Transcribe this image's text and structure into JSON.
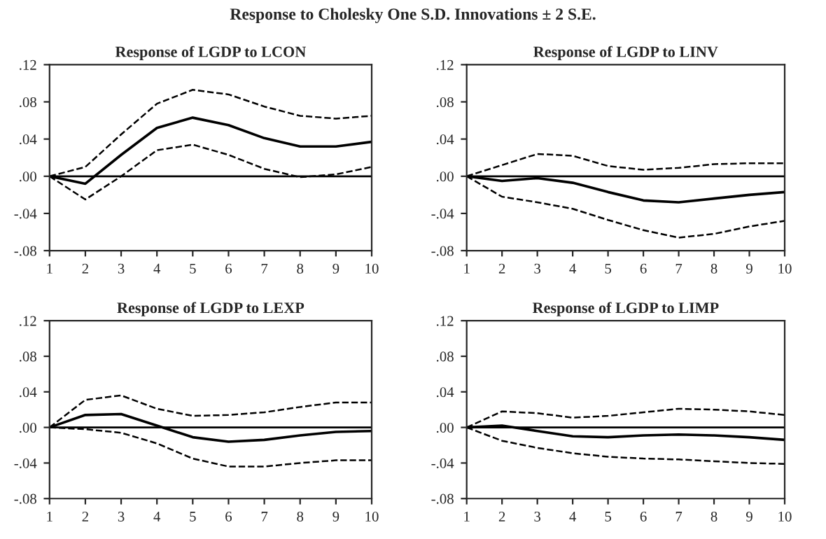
{
  "chart_data": [
    {
      "type": "line",
      "title": "Response of LGDP to LCON",
      "annotations": [
        "Response to Cholesky One S.D. Innovations ± 2 S.E."
      ],
      "x": [
        1,
        2,
        3,
        4,
        5,
        6,
        7,
        8,
        9,
        10
      ],
      "xlim": [
        1,
        10
      ],
      "xticks": [
        1,
        2,
        3,
        4,
        5,
        6,
        7,
        8,
        9,
        10
      ],
      "ylim": [
        -0.08,
        0.12
      ],
      "yticks": [
        {
          "value": -0.08,
          "label": "-.08"
        },
        {
          "value": -0.04,
          "label": "-.04"
        },
        {
          "value": 0.0,
          "label": ".00"
        },
        {
          "value": 0.04,
          "label": ".04"
        },
        {
          "value": 0.08,
          "label": ".08"
        },
        {
          "value": 0.12,
          "label": ".12"
        }
      ],
      "grid": false,
      "ref_lines": [
        {
          "axis": "y",
          "value": 0,
          "color": "#000000",
          "line_style": "solid"
        }
      ],
      "series": [
        {
          "color": "#000000",
          "line_style": "solid",
          "values": [
            0,
            -0.008,
            0.023,
            0.052,
            0.063,
            0.055,
            0.041,
            0.032,
            0.032,
            0.037
          ]
        },
        {
          "color": "#000000",
          "line_style": "dashed",
          "values": [
            0,
            0.01,
            0.045,
            0.078,
            0.093,
            0.088,
            0.075,
            0.065,
            0.062,
            0.065
          ]
        },
        {
          "color": "#000000",
          "line_style": "dashed",
          "values": [
            0,
            -0.025,
            0.0,
            0.028,
            0.034,
            0.023,
            0.008,
            -0.001,
            0.002,
            0.01
          ]
        }
      ]
    },
    {
      "type": "line",
      "title": "Response of LGDP to LINV",
      "x": [
        1,
        2,
        3,
        4,
        5,
        6,
        7,
        8,
        9,
        10
      ],
      "xlim": [
        1,
        10
      ],
      "xticks": [
        1,
        2,
        3,
        4,
        5,
        6,
        7,
        8,
        9,
        10
      ],
      "ylim": [
        -0.08,
        0.12
      ],
      "yticks": [
        {
          "value": -0.08,
          "label": "-.08"
        },
        {
          "value": -0.04,
          "label": "-.04"
        },
        {
          "value": 0.0,
          "label": ".00"
        },
        {
          "value": 0.04,
          "label": ".04"
        },
        {
          "value": 0.08,
          "label": ".08"
        },
        {
          "value": 0.12,
          "label": ".12"
        }
      ],
      "grid": false,
      "ref_lines": [
        {
          "axis": "y",
          "value": 0,
          "color": "#000000",
          "line_style": "solid"
        }
      ],
      "series": [
        {
          "color": "#000000",
          "line_style": "solid",
          "values": [
            0,
            -0.005,
            -0.002,
            -0.007,
            -0.017,
            -0.026,
            -0.028,
            -0.024,
            -0.02,
            -0.017
          ]
        },
        {
          "color": "#000000",
          "line_style": "dashed",
          "values": [
            0,
            0.012,
            0.024,
            0.022,
            0.011,
            0.007,
            0.009,
            0.013,
            0.014,
            0.014
          ]
        },
        {
          "color": "#000000",
          "line_style": "dashed",
          "values": [
            0,
            -0.022,
            -0.028,
            -0.035,
            -0.047,
            -0.058,
            -0.066,
            -0.062,
            -0.054,
            -0.048
          ]
        }
      ]
    },
    {
      "type": "line",
      "title": "Response of LGDP to LEXP",
      "x": [
        1,
        2,
        3,
        4,
        5,
        6,
        7,
        8,
        9,
        10
      ],
      "xlim": [
        1,
        10
      ],
      "xticks": [
        1,
        2,
        3,
        4,
        5,
        6,
        7,
        8,
        9,
        10
      ],
      "ylim": [
        -0.08,
        0.12
      ],
      "yticks": [
        {
          "value": -0.08,
          "label": "-.08"
        },
        {
          "value": -0.04,
          "label": "-.04"
        },
        {
          "value": 0.0,
          "label": ".00"
        },
        {
          "value": 0.04,
          "label": ".04"
        },
        {
          "value": 0.08,
          "label": ".08"
        },
        {
          "value": 0.12,
          "label": ".12"
        }
      ],
      "grid": false,
      "ref_lines": [
        {
          "axis": "y",
          "value": 0,
          "color": "#000000",
          "line_style": "solid"
        }
      ],
      "series": [
        {
          "color": "#000000",
          "line_style": "solid",
          "values": [
            0,
            0.014,
            0.015,
            0.002,
            -0.011,
            -0.016,
            -0.014,
            -0.009,
            -0.005,
            -0.004
          ]
        },
        {
          "color": "#000000",
          "line_style": "dashed",
          "values": [
            0,
            0.031,
            0.036,
            0.021,
            0.013,
            0.014,
            0.017,
            0.023,
            0.028,
            0.028
          ]
        },
        {
          "color": "#000000",
          "line_style": "dashed",
          "values": [
            0,
            -0.002,
            -0.006,
            -0.018,
            -0.035,
            -0.044,
            -0.044,
            -0.04,
            -0.037,
            -0.037
          ]
        }
      ]
    },
    {
      "type": "line",
      "title": "Response of LGDP to LIMP",
      "x": [
        1,
        2,
        3,
        4,
        5,
        6,
        7,
        8,
        9,
        10
      ],
      "xlim": [
        1,
        10
      ],
      "xticks": [
        1,
        2,
        3,
        4,
        5,
        6,
        7,
        8,
        9,
        10
      ],
      "ylim": [
        -0.08,
        0.12
      ],
      "yticks": [
        {
          "value": -0.08,
          "label": "-.08"
        },
        {
          "value": -0.04,
          "label": "-.04"
        },
        {
          "value": 0.0,
          "label": ".00"
        },
        {
          "value": 0.04,
          "label": ".04"
        },
        {
          "value": 0.08,
          "label": ".08"
        },
        {
          "value": 0.12,
          "label": ".12"
        }
      ],
      "grid": false,
      "ref_lines": [
        {
          "axis": "y",
          "value": 0,
          "color": "#000000",
          "line_style": "solid"
        }
      ],
      "series": [
        {
          "color": "#000000",
          "line_style": "solid",
          "values": [
            0,
            0.002,
            -0.004,
            -0.01,
            -0.011,
            -0.009,
            -0.008,
            -0.009,
            -0.011,
            -0.014
          ]
        },
        {
          "color": "#000000",
          "line_style": "dashed",
          "values": [
            0,
            0.018,
            0.016,
            0.011,
            0.013,
            0.017,
            0.021,
            0.02,
            0.018,
            0.014
          ]
        },
        {
          "color": "#000000",
          "line_style": "dashed",
          "values": [
            0,
            -0.015,
            -0.023,
            -0.029,
            -0.033,
            -0.035,
            -0.036,
            -0.038,
            -0.04,
            -0.041
          ]
        }
      ]
    }
  ]
}
